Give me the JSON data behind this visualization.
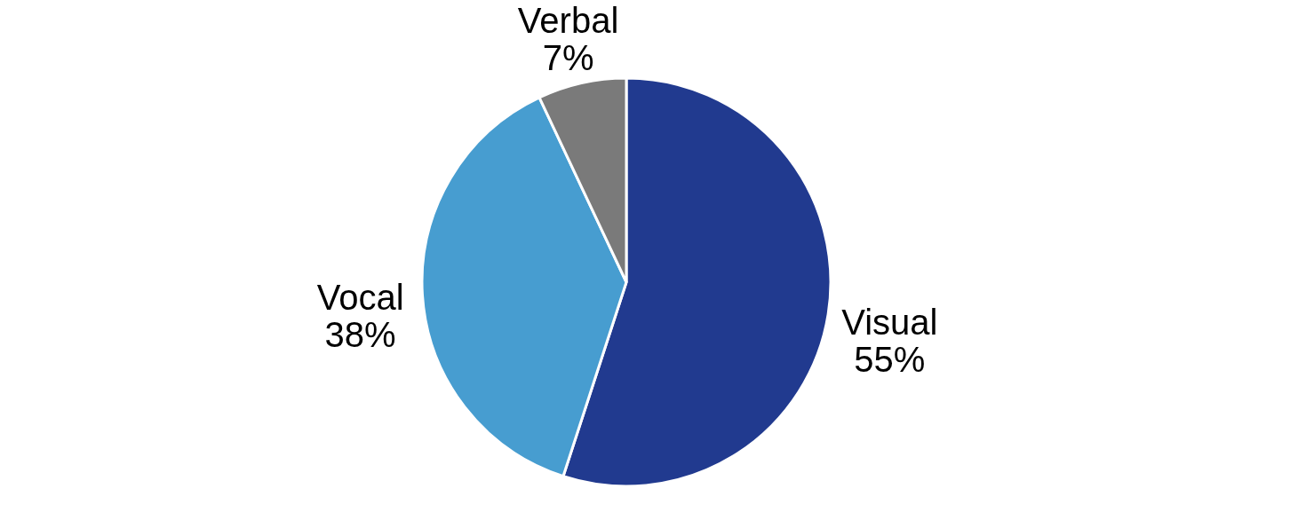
{
  "chart_data": {
    "type": "pie",
    "categories": [
      "Visual",
      "Vocal",
      "Verbal"
    ],
    "values": [
      55,
      38,
      7
    ],
    "value_labels": [
      "55%",
      "38%",
      "7%"
    ],
    "colors": [
      "#213a8f",
      "#479dd0",
      "#7a7a7a"
    ],
    "legend": false
  }
}
